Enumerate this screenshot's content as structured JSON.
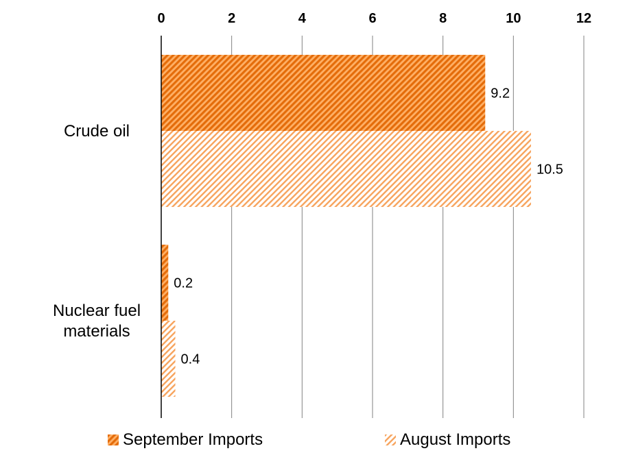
{
  "chart_data": {
    "type": "bar",
    "orientation": "horizontal",
    "categories": [
      "Crude oil",
      "Nuclear fuel materials"
    ],
    "category_lines": [
      [
        "Crude oil"
      ],
      [
        "Nuclear fuel",
        "materials"
      ]
    ],
    "series": [
      {
        "name": "September Imports",
        "values": [
          9.2,
          0.2
        ],
        "labels": [
          "9.2",
          "0.2"
        ],
        "color": "#e46c0a",
        "pattern": "dense-diagonal"
      },
      {
        "name": "August Imports",
        "values": [
          10.5,
          0.4
        ],
        "labels": [
          "10.5",
          "0.4"
        ],
        "color": "#f79646",
        "pattern": "light-diagonal"
      }
    ],
    "xlim": [
      0,
      12
    ],
    "xticks": [
      0,
      2,
      4,
      6,
      8,
      10,
      12
    ],
    "x_axis_position": "top",
    "grid": "vertical",
    "legend_position": "bottom"
  },
  "colors": {
    "grid": "#808080",
    "axis": "#000000"
  }
}
